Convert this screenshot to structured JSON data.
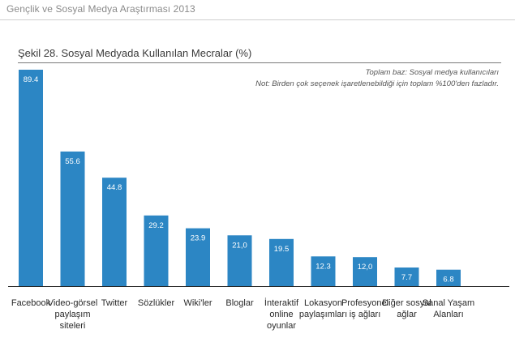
{
  "header": {
    "text": "Gençlik ve Sosyal Medya Araştırması 2013"
  },
  "figure": {
    "title": "Şekil 28. Sosyal Medyada Kullanılan Mecralar (%)",
    "note_base": "Toplam baz: Sosyal medya kullanıcıları",
    "note_multi": "Not: Birden çok seçenek işaretlenebildiği için toplam %100'den fazladır."
  },
  "chart_data": {
    "type": "bar",
    "categories": [
      [
        "Facebook"
      ],
      [
        "Video-görsel",
        "paylaşım",
        "siteleri"
      ],
      [
        "Twitter"
      ],
      [
        "Sözlükler"
      ],
      [
        "Wiki'ler"
      ],
      [
        "Bloglar"
      ],
      [
        "İnteraktif",
        "online",
        "oyunlar"
      ],
      [
        "Lokasyon",
        "paylaşımları"
      ],
      [
        "Profesyonel",
        "iş ağları"
      ],
      [
        "Diğer sosyal",
        "ağlar"
      ],
      [
        "Sanal Yaşam",
        "Alanları"
      ]
    ],
    "values": [
      89.4,
      55.6,
      44.8,
      29.2,
      23.9,
      21.0,
      19.5,
      12.3,
      12.0,
      7.7,
      6.8
    ],
    "value_labels": [
      "89.4",
      "55.6",
      "44.8",
      "29.2",
      "23.9",
      "21,0",
      "19.5",
      "12.3",
      "12,0",
      "7.7",
      "6.8"
    ],
    "ylim": [
      0,
      89.4
    ],
    "bar_color": "#2c86c4"
  }
}
